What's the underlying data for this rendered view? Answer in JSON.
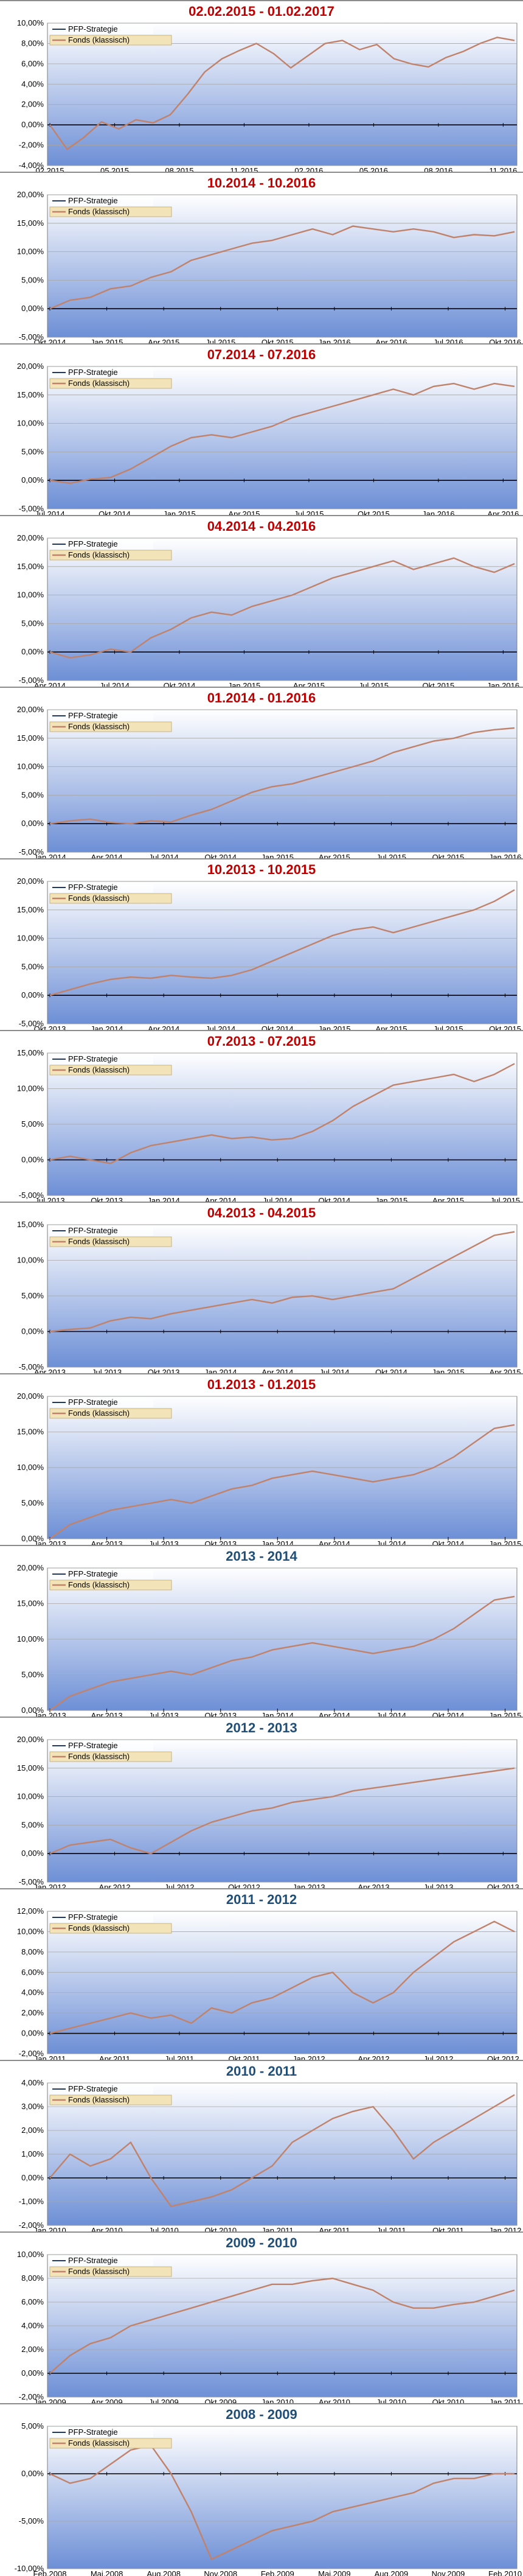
{
  "colors": {
    "title_red": "#c00000",
    "title_blue": "#1f4e79",
    "strategy_line": "#1f3864",
    "fund_line": "#c0826a",
    "plot_top": "#ffffff",
    "plot_bottom": "#6d8fd6",
    "legend_bg": "#f2e4b8"
  },
  "legend": {
    "strategy": "PFP-Strategie",
    "fund": "Fonds (klassisch)"
  },
  "chart_data": [
    {
      "type": "line",
      "title": "02.02.2015 - 01.02.2017",
      "title_color": "red",
      "y_ticks": [
        "10,00%",
        "8,00%",
        "6,00%",
        "4,00%",
        "2,00%",
        "0,00%",
        "-2,00%",
        "-4,00%"
      ],
      "ylim": [
        -4,
        10
      ],
      "y_step": 2,
      "x_ticks": [
        "02.2015",
        "05.2015",
        "08.2015",
        "11.2015",
        "02.2016",
        "05.2016",
        "08.2016",
        "11.2016"
      ],
      "fund": [
        0,
        -2.4,
        -1.2,
        0.3,
        -0.4,
        0.5,
        0.2,
        1.0,
        3.0,
        5.2,
        6.5,
        7.3,
        8.0,
        7.0,
        5.6,
        6.8,
        8.0,
        8.3,
        7.4,
        7.9,
        6.5,
        6.0,
        5.7,
        6.6,
        7.2,
        8.0,
        8.6,
        8.3
      ],
      "strategy": [
        0,
        -2.4,
        -1.2,
        0.3,
        -0.4,
        0.5,
        0.2,
        1.0,
        3.0,
        5.2,
        6.5,
        7.3,
        8.0,
        7.0,
        5.6,
        6.8,
        8.0,
        8.3,
        7.4,
        7.9,
        6.5,
        6.0,
        5.7,
        6.6,
        7.2,
        8.0,
        8.6,
        8.3
      ]
    },
    {
      "type": "line",
      "title": "10.2014 - 10.2016",
      "title_color": "red",
      "y_ticks": [
        "20,00%",
        "15,00%",
        "10,00%",
        "5,00%",
        "0,00%",
        "-5,00%"
      ],
      "ylim": [
        -5,
        20
      ],
      "y_step": 5,
      "x_ticks": [
        "Okt.2014",
        "Jan.2015",
        "Apr.2015",
        "Jul.2015",
        "Okt.2015",
        "Jan.2016",
        "Apr.2016",
        "Jul.2016",
        "Okt.2016"
      ],
      "fund": [
        0,
        1.5,
        2.0,
        3.5,
        4.0,
        5.5,
        6.5,
        8.5,
        9.5,
        10.5,
        11.5,
        12.0,
        13.0,
        14.0,
        13.0,
        14.5,
        14.0,
        13.5,
        14.0,
        13.5,
        12.5,
        13.0,
        12.8,
        13.5
      ],
      "strategy": [
        0,
        1.5,
        2.0,
        3.5,
        4.0,
        5.5,
        6.5,
        8.5,
        9.5,
        10.5,
        11.5,
        12.0,
        13.0,
        14.0,
        13.0,
        14.5,
        14.0,
        13.5,
        14.0,
        13.5,
        12.5,
        13.0,
        12.8,
        13.5
      ]
    },
    {
      "type": "line",
      "title": "07.2014 - 07.2016",
      "title_color": "red",
      "y_ticks": [
        "20,00%",
        "15,00%",
        "10,00%",
        "5,00%",
        "0,00%",
        "-5,00%"
      ],
      "ylim": [
        -5,
        20
      ],
      "y_step": 5,
      "x_ticks": [
        "Jul.2014",
        "Okt.2014",
        "Jan.2015",
        "Apr.2015",
        "Jul.2015",
        "Okt.2015",
        "Jan.2016",
        "Apr.2016"
      ],
      "fund": [
        0,
        -0.5,
        0.2,
        0.5,
        2.0,
        4.0,
        6.0,
        7.5,
        8.0,
        7.5,
        8.5,
        9.5,
        11.0,
        12.0,
        13.0,
        14.0,
        15.0,
        16.0,
        15.0,
        16.5,
        17.0,
        16.0,
        17.0,
        16.5
      ],
      "strategy": [
        0,
        -0.5,
        0.2,
        0.5,
        2.0,
        4.0,
        6.0,
        7.5,
        8.0,
        7.5,
        8.5,
        9.5,
        11.0,
        12.0,
        13.0,
        14.0,
        15.0,
        16.0,
        15.0,
        16.5,
        17.0,
        16.0,
        17.0,
        16.5
      ]
    },
    {
      "type": "line",
      "title": "04.2014 - 04.2016",
      "title_color": "red",
      "y_ticks": [
        "20,00%",
        "15,00%",
        "10,00%",
        "5,00%",
        "0,00%",
        "-5,00%"
      ],
      "ylim": [
        -5,
        20
      ],
      "y_step": 5,
      "x_ticks": [
        "Apr.2014",
        "Jul.2014",
        "Okt.2014",
        "Jan.2015",
        "Apr.2015",
        "Jul.2015",
        "Okt.2015",
        "Jan.2016"
      ],
      "fund": [
        0,
        -1.0,
        -0.5,
        0.5,
        0.0,
        2.5,
        4.0,
        6.0,
        7.0,
        6.5,
        8.0,
        9.0,
        10.0,
        11.5,
        13.0,
        14.0,
        15.0,
        16.0,
        14.5,
        15.5,
        16.5,
        15.0,
        14.0,
        15.5
      ],
      "strategy": [
        0,
        -1.0,
        -0.5,
        0.5,
        0.0,
        2.5,
        4.0,
        6.0,
        7.0,
        6.5,
        8.0,
        9.0,
        10.0,
        11.5,
        13.0,
        14.0,
        15.0,
        16.0,
        14.5,
        15.5,
        16.5,
        15.0,
        14.0,
        15.5
      ]
    },
    {
      "type": "line",
      "title": "01.2014 - 01.2016",
      "title_color": "red",
      "y_ticks": [
        "20,00%",
        "15,00%",
        "10,00%",
        "5,00%",
        "0,00%",
        "-5,00%"
      ],
      "ylim": [
        -5,
        20
      ],
      "y_step": 5,
      "x_ticks": [
        "Jan.2014",
        "Apr.2014",
        "Jul.2014",
        "Okt.2014",
        "Jan.2015",
        "Apr.2015",
        "Jul.2015",
        "Okt.2015",
        "Jan.2016"
      ],
      "fund": [
        0,
        0.5,
        0.8,
        0.2,
        0.0,
        0.5,
        0.3,
        1.5,
        2.5,
        4.0,
        5.5,
        6.5,
        7.0,
        8.0,
        9.0,
        10.0,
        11.0,
        12.5,
        13.5,
        14.5,
        15.0,
        16.0,
        16.5,
        16.8
      ],
      "strategy": [
        0,
        0.5,
        0.8,
        0.2,
        0.0,
        0.5,
        0.3,
        1.5,
        2.5,
        4.0,
        5.5,
        6.5,
        7.0,
        8.0,
        9.0,
        10.0,
        11.0,
        12.5,
        13.5,
        14.5,
        15.0,
        16.0,
        16.5,
        16.8
      ]
    },
    {
      "type": "line",
      "title": "10.2013 - 10.2015",
      "title_color": "red",
      "y_ticks": [
        "20,00%",
        "15,00%",
        "10,00%",
        "5,00%",
        "0,00%",
        "-5,00%"
      ],
      "ylim": [
        -5,
        20
      ],
      "y_step": 5,
      "x_ticks": [
        "Okt.2013",
        "Jan.2014",
        "Apr.2014",
        "Jul.2014",
        "Okt.2014",
        "Jan.2015",
        "Apr.2015",
        "Jul.2015",
        "Okt.2015"
      ],
      "fund": [
        0,
        1.0,
        2.0,
        2.8,
        3.2,
        3.0,
        3.5,
        3.2,
        3.0,
        3.5,
        4.5,
        6.0,
        7.5,
        9.0,
        10.5,
        11.5,
        12.0,
        11.0,
        12.0,
        13.0,
        14.0,
        15.0,
        16.5,
        18.5
      ],
      "strategy": [
        0,
        1.0,
        2.0,
        2.8,
        3.2,
        3.0,
        3.5,
        3.2,
        3.0,
        3.5,
        4.5,
        6.0,
        7.5,
        9.0,
        10.5,
        11.5,
        12.0,
        11.0,
        12.0,
        13.0,
        14.0,
        15.0,
        16.5,
        18.5
      ]
    },
    {
      "type": "line",
      "title": "07.2013 - 07.2015",
      "title_color": "red",
      "y_ticks": [
        "15,00%",
        "10,00%",
        "5,00%",
        "0,00%",
        "-5,00%"
      ],
      "ylim": [
        -5,
        15
      ],
      "y_step": 5,
      "x_ticks": [
        "Jul.2013",
        "Okt.2013",
        "Jan.2014",
        "Apr.2014",
        "Jul.2014",
        "Okt.2014",
        "Jan.2015",
        "Apr.2015",
        "Jul.2015"
      ],
      "fund": [
        0,
        0.5,
        0.0,
        -0.5,
        1.0,
        2.0,
        2.5,
        3.0,
        3.5,
        3.0,
        3.2,
        2.8,
        3.0,
        4.0,
        5.5,
        7.5,
        9.0,
        10.5,
        11.0,
        11.5,
        12.0,
        11.0,
        12.0,
        13.5
      ],
      "strategy": [
        0,
        0.5,
        0.0,
        -0.5,
        1.0,
        2.0,
        2.5,
        3.0,
        3.5,
        3.0,
        3.2,
        2.8,
        3.0,
        4.0,
        5.5,
        7.5,
        9.0,
        10.5,
        11.0,
        11.5,
        12.0,
        11.0,
        12.0,
        13.5
      ]
    },
    {
      "type": "line",
      "title": "04.2013 - 04.2015",
      "title_color": "red",
      "y_ticks": [
        "15,00%",
        "10,00%",
        "5,00%",
        "0,00%",
        "-5,00%"
      ],
      "ylim": [
        -5,
        15
      ],
      "y_step": 5,
      "x_ticks": [
        "Apr.2013",
        "Jul.2013",
        "Okt.2013",
        "Jan.2014",
        "Apr.2014",
        "Jul.2014",
        "Okt.2014",
        "Jan.2015",
        "Apr.2015"
      ],
      "fund": [
        0,
        0.3,
        0.5,
        1.5,
        2.0,
        1.8,
        2.5,
        3.0,
        3.5,
        4.0,
        4.5,
        4.0,
        4.8,
        5.0,
        4.5,
        5.0,
        5.5,
        6.0,
        7.5,
        9.0,
        10.5,
        12.0,
        13.5,
        14.0
      ],
      "strategy": [
        0,
        0.3,
        0.5,
        1.5,
        2.0,
        1.8,
        2.5,
        3.0,
        3.5,
        4.0,
        4.5,
        4.0,
        4.8,
        5.0,
        4.5,
        5.0,
        5.5,
        6.0,
        7.5,
        9.0,
        10.5,
        12.0,
        13.5,
        14.0
      ]
    },
    {
      "type": "line",
      "title": "01.2013 - 01.2015",
      "title_color": "red",
      "y_ticks": [
        "20,00%",
        "15,00%",
        "10,00%",
        "5,00%",
        "0,00%"
      ],
      "ylim": [
        0,
        20
      ],
      "y_step": 5,
      "x_ticks": [
        "Jan.2013",
        "Apr.2013",
        "Jul.2013",
        "Okt.2013",
        "Jan.2014",
        "Apr.2014",
        "Jul.2014",
        "Okt.2014",
        "Jan.2015"
      ],
      "fund": [
        0,
        2.0,
        3.0,
        4.0,
        4.5,
        5.0,
        5.5,
        5.0,
        6.0,
        7.0,
        7.5,
        8.5,
        9.0,
        9.5,
        9.0,
        8.5,
        8.0,
        8.5,
        9.0,
        10.0,
        11.5,
        13.5,
        15.5,
        16.0
      ],
      "strategy": [
        0,
        2.0,
        3.0,
        4.0,
        4.5,
        5.0,
        5.5,
        5.0,
        6.0,
        7.0,
        7.5,
        8.5,
        9.0,
        9.5,
        9.0,
        8.5,
        8.0,
        8.5,
        9.0,
        10.0,
        11.5,
        13.5,
        15.5,
        16.0
      ]
    },
    {
      "type": "line",
      "title": "2013 - 2014",
      "title_color": "blue",
      "y_ticks": [
        "20,00%",
        "15,00%",
        "10,00%",
        "5,00%",
        "0,00%"
      ],
      "ylim": [
        0,
        20
      ],
      "y_step": 5,
      "x_ticks": [
        "Jan.2013",
        "Apr.2013",
        "Jul.2013",
        "Okt.2013",
        "Jan.2014",
        "Apr.2014",
        "Jul.2014",
        "Okt.2014",
        "Jan.2015"
      ],
      "fund": [
        0,
        2.0,
        3.0,
        4.0,
        4.5,
        5.0,
        5.5,
        5.0,
        6.0,
        7.0,
        7.5,
        8.5,
        9.0,
        9.5,
        9.0,
        8.5,
        8.0,
        8.5,
        9.0,
        10.0,
        11.5,
        13.5,
        15.5,
        16.0
      ],
      "strategy": [
        0,
        2.0,
        3.0,
        4.0,
        4.5,
        5.0,
        5.5,
        5.0,
        6.0,
        7.0,
        7.5,
        8.5,
        9.0,
        9.5,
        9.0,
        8.5,
        8.0,
        8.5,
        9.0,
        10.0,
        11.5,
        13.5,
        15.5,
        16.0
      ]
    },
    {
      "type": "line",
      "title": "2012 - 2013",
      "title_color": "blue",
      "y_ticks": [
        "20,00%",
        "15,00%",
        "10,00%",
        "5,00%",
        "0,00%",
        "-5,00%"
      ],
      "ylim": [
        -5,
        20
      ],
      "y_step": 5,
      "x_ticks": [
        "Jan.2012",
        "Apr.2012",
        "Jul.2012",
        "Okt.2012",
        "Jan.2013",
        "Apr.2013",
        "Jul.2013",
        "Okt.2013"
      ],
      "fund": [
        0,
        1.5,
        2.0,
        2.5,
        1.0,
        0.0,
        2.0,
        4.0,
        5.5,
        6.5,
        7.5,
        8.0,
        9.0,
        9.5,
        10.0,
        11.0,
        11.5,
        12.0,
        12.5,
        13.0,
        13.5,
        14.0,
        14.5,
        15.0
      ],
      "strategy": [
        0,
        1.5,
        2.0,
        2.5,
        1.0,
        0.0,
        2.0,
        4.0,
        5.5,
        6.5,
        7.5,
        8.0,
        9.0,
        9.5,
        10.0,
        11.0,
        11.5,
        12.0,
        12.5,
        13.0,
        13.5,
        14.0,
        14.5,
        15.0
      ]
    },
    {
      "type": "line",
      "title": "2011 - 2012",
      "title_color": "blue",
      "y_ticks": [
        "12,00%",
        "10,00%",
        "8,00%",
        "6,00%",
        "4,00%",
        "2,00%",
        "0,00%",
        "-2,00%"
      ],
      "ylim": [
        -2,
        12
      ],
      "y_step": 2,
      "x_ticks": [
        "Jan.2011",
        "Apr.2011",
        "Jul.2011",
        "Okt.2011",
        "Jan.2012",
        "Apr.2012",
        "Jul.2012",
        "Okt.2012"
      ],
      "fund": [
        0,
        0.5,
        1.0,
        1.5,
        2.0,
        1.5,
        1.8,
        1.0,
        2.5,
        2.0,
        3.0,
        3.5,
        4.5,
        5.5,
        6.0,
        4.0,
        3.0,
        4.0,
        6.0,
        7.5,
        9.0,
        10.0,
        11.0,
        10.0
      ],
      "strategy": [
        0,
        0.5,
        1.0,
        1.5,
        2.0,
        1.5,
        1.8,
        1.0,
        2.5,
        2.0,
        3.0,
        3.5,
        4.5,
        5.5,
        6.0,
        4.0,
        3.0,
        4.0,
        6.0,
        7.5,
        9.0,
        10.0,
        11.0,
        10.0
      ]
    },
    {
      "type": "line",
      "title": "2010 - 2011",
      "title_color": "blue",
      "y_ticks": [
        "4,00%",
        "3,00%",
        "2,00%",
        "1,00%",
        "0,00%",
        "-1,00%",
        "-2,00%"
      ],
      "ylim": [
        -2,
        4
      ],
      "y_step": 1,
      "x_ticks": [
        "Jan.2010",
        "Apr.2010",
        "Jul.2010",
        "Okt.2010",
        "Jan.2011",
        "Apr.2011",
        "Jul.2011",
        "Okt.2011",
        "Jan.2012"
      ],
      "fund": [
        0,
        1.0,
        0.5,
        0.8,
        1.5,
        0.0,
        -1.2,
        -1.0,
        -0.8,
        -0.5,
        0.0,
        0.5,
        1.5,
        2.0,
        2.5,
        2.8,
        3.0,
        2.0,
        0.8,
        1.5,
        2.0,
        2.5,
        3.0,
        3.5
      ],
      "strategy": [
        0,
        1.0,
        0.5,
        0.8,
        1.5,
        0.0,
        -1.2,
        -1.0,
        -0.8,
        -0.5,
        0.0,
        0.5,
        1.5,
        2.0,
        2.5,
        2.8,
        3.0,
        2.0,
        0.8,
        1.5,
        2.0,
        2.5,
        3.0,
        3.5
      ]
    },
    {
      "type": "line",
      "title": "2009 - 2010",
      "title_color": "blue",
      "y_ticks": [
        "10,00%",
        "8,00%",
        "6,00%",
        "4,00%",
        "2,00%",
        "0,00%",
        "-2,00%"
      ],
      "ylim": [
        -2,
        10
      ],
      "y_step": 2,
      "x_ticks": [
        "Jan.2009",
        "Apr.2009",
        "Jul.2009",
        "Okt.2009",
        "Jan.2010",
        "Apr.2010",
        "Jul.2010",
        "Okt.2010",
        "Jan.2011"
      ],
      "fund": [
        0,
        1.5,
        2.5,
        3.0,
        4.0,
        4.5,
        5.0,
        5.5,
        6.0,
        6.5,
        7.0,
        7.5,
        7.5,
        7.8,
        8.0,
        7.5,
        7.0,
        6.0,
        5.5,
        5.5,
        5.8,
        6.0,
        6.5,
        7.0
      ],
      "strategy": [
        0,
        1.5,
        2.5,
        3.0,
        4.0,
        4.5,
        5.0,
        5.5,
        6.0,
        6.5,
        7.0,
        7.5,
        7.5,
        7.8,
        8.0,
        7.5,
        7.0,
        6.0,
        5.5,
        5.5,
        5.8,
        6.0,
        6.5,
        7.0
      ]
    },
    {
      "type": "line",
      "title": "2008 - 2009",
      "title_color": "blue",
      "y_ticks": [
        "5,00%",
        "0,00%",
        "-5,00%",
        "-10,00%"
      ],
      "ylim": [
        -10,
        5
      ],
      "y_step": 5,
      "x_ticks": [
        "Feb.2008",
        "Mai.2008",
        "Aug.2008",
        "Nov.2008",
        "Feb.2009",
        "Mai.2009",
        "Aug.2009",
        "Nov.2009",
        "Feb.2010"
      ],
      "fund": [
        0,
        -1.0,
        -0.5,
        1.0,
        2.5,
        3.0,
        0.0,
        -4.0,
        -9.0,
        -8.0,
        -7.0,
        -6.0,
        -5.5,
        -5.0,
        -4.0,
        -3.5,
        -3.0,
        -2.5,
        -2.0,
        -1.0,
        -0.5,
        -0.5,
        0.0,
        0.0
      ],
      "strategy": [
        0,
        -1.0,
        -0.5,
        1.0,
        2.5,
        3.0,
        0.0,
        -4.0,
        -9.0,
        -8.0,
        -7.0,
        -6.0,
        -5.5,
        -5.0,
        -4.0,
        -3.5,
        -3.0,
        -2.5,
        -2.0,
        -1.0,
        -0.5,
        -0.5,
        0.0,
        0.0
      ]
    }
  ]
}
